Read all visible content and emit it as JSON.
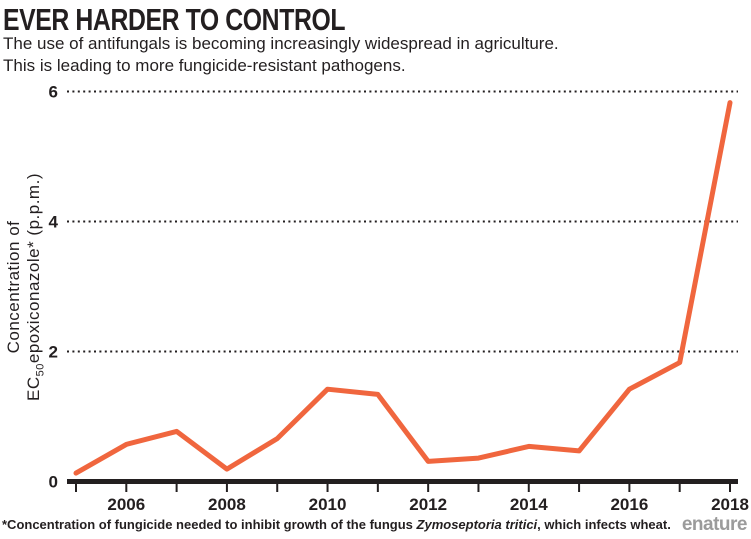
{
  "header": {
    "title": "EVER HARDER TO CONTROL",
    "subtitle_line1": "The use of antifungals is becoming increasingly widespread in agriculture.",
    "subtitle_line2": "This is leading to more fungicide-resistant pathogens."
  },
  "axes": {
    "y_label_line1": "Concentration of",
    "y_label_ec": "EC",
    "y_label_sub": "50",
    "y_label_rest": "epoxiconazole* (p.p.m.)"
  },
  "footnote": {
    "part1": "*Concentration of fungicide needed to inhibit growth of the fungus ",
    "italic": "Zymoseptoria tritici",
    "part2": ", which infects wheat."
  },
  "branding": {
    "logo_text": "enature"
  },
  "colors": {
    "line": "#f0663e",
    "text": "#231f20",
    "logo": "#9b9b9b"
  },
  "chart_data": {
    "type": "line",
    "title": "EVER HARDER TO CONTROL",
    "subtitle": "The use of antifungals is becoming increasingly widespread in agriculture. This is leading to more fungicide-resistant pathogens.",
    "ylabel": "Concentration of EC50 epoxiconazole* (p.p.m.)",
    "xlabel": "",
    "x": [
      2005,
      2006,
      2007,
      2008,
      2009,
      2010,
      2011,
      2012,
      2013,
      2014,
      2015,
      2016,
      2017,
      2018
    ],
    "values": [
      0.13,
      0.57,
      0.77,
      0.19,
      0.66,
      1.42,
      1.34,
      0.31,
      0.36,
      0.54,
      0.47,
      1.42,
      1.83,
      5.83
    ],
    "series_name": "EC50 epoxiconazole concentration",
    "xlim": [
      2005,
      2018
    ],
    "ylim": [
      0,
      6.2
    ],
    "y_ticks": [
      0,
      2,
      4,
      6
    ],
    "x_tick_years": [
      2006,
      2008,
      2010,
      2012,
      2014,
      2016,
      2018
    ],
    "grid": "horizontal-dotted",
    "legend": "none",
    "line_color": "#f0663e"
  }
}
